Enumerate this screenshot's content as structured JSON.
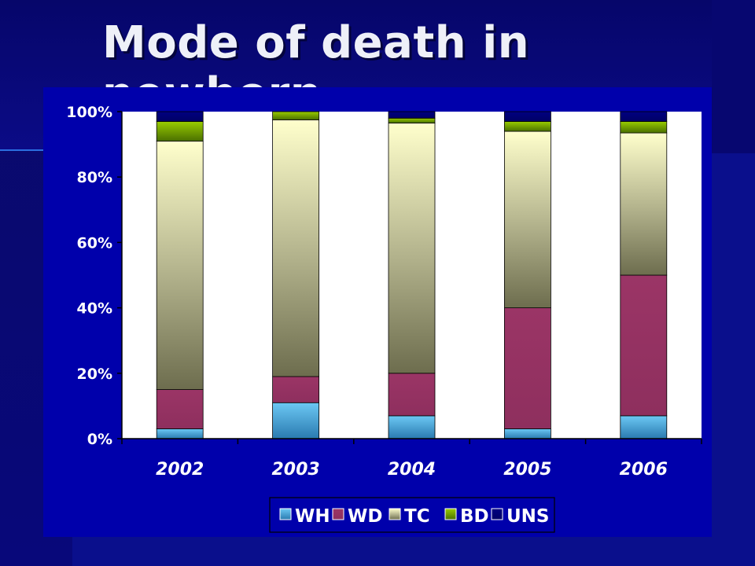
{
  "slide": {
    "title": "Mode of death in newborn"
  },
  "chart_data": {
    "type": "bar",
    "stacked": "percent",
    "title": "",
    "xlabel": "",
    "ylabel": "",
    "categories": [
      "2002",
      "2003",
      "2004",
      "2005",
      "2006"
    ],
    "ylim": [
      0,
      100
    ],
    "yticks": [
      "0%",
      "20%",
      "40%",
      "60%",
      "80%",
      "100%"
    ],
    "series": [
      {
        "name": "WH",
        "values": [
          3,
          11,
          7,
          3,
          7
        ],
        "color": "#2f8fc8"
      },
      {
        "name": "WD",
        "values": [
          12,
          8,
          13,
          37,
          43
        ],
        "color": "#993366"
      },
      {
        "name": "TC",
        "values": [
          76,
          78.5,
          76.5,
          54,
          43.5
        ],
        "color": "#d8d8a8"
      },
      {
        "name": "BD",
        "values": [
          6,
          2.5,
          1.5,
          3,
          3.5
        ],
        "color": "#77a800"
      },
      {
        "name": "UNS",
        "values": [
          3,
          0,
          2,
          3,
          3
        ],
        "color": "#000080"
      }
    ],
    "legend": {
      "placement": "bottom"
    },
    "grid": false,
    "plot_background": "#ffffff"
  }
}
